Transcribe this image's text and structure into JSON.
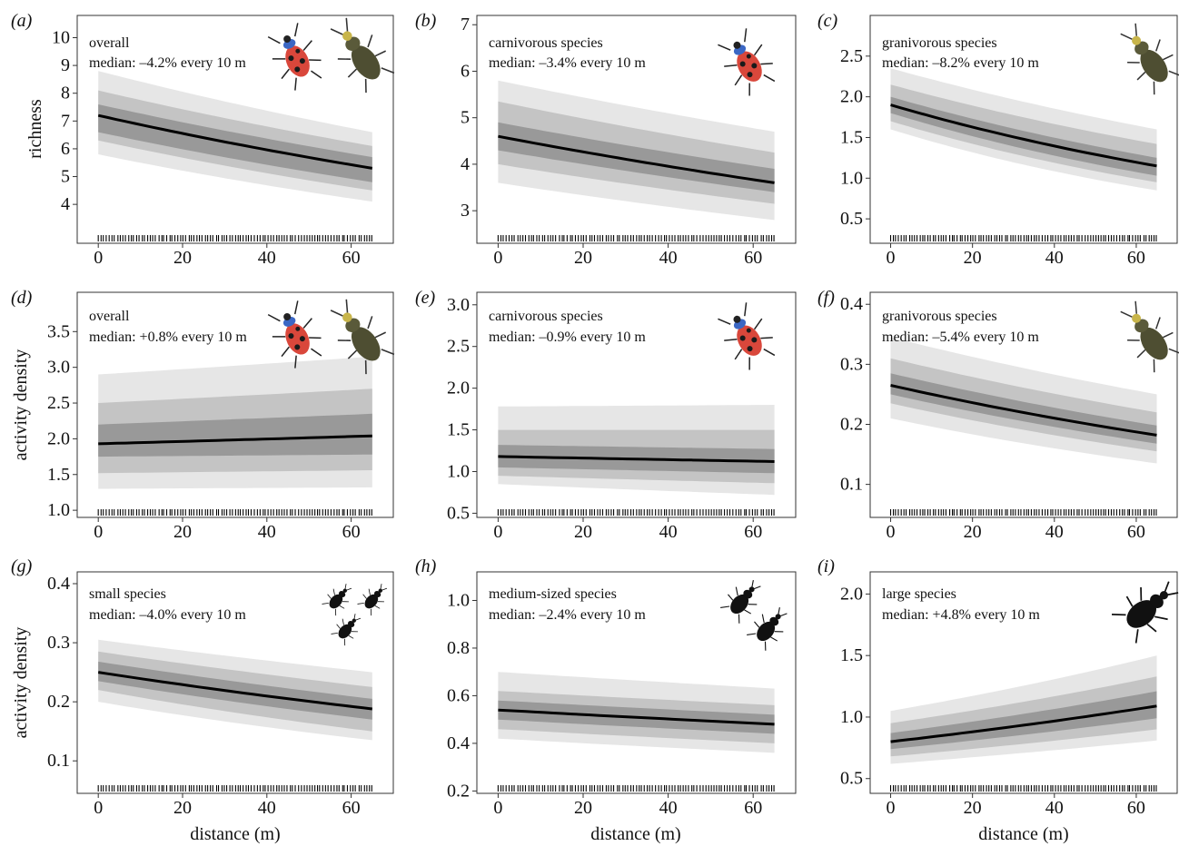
{
  "figure": {
    "ylabels": [
      "richness",
      "activity density",
      "activity density"
    ],
    "xlabel": "distance (m)"
  },
  "chart_data": [
    {
      "type": "line",
      "panel_label": "(a)",
      "annotation": [
        "overall",
        "median: –4.2% every 10 m"
      ],
      "icon": "ladybird-and-ground-beetle",
      "x": [
        0,
        65
      ],
      "series": [
        {
          "values": [
            7.2,
            5.3
          ]
        }
      ],
      "bands": [
        [
          6.6,
          4.8,
          7.6,
          5.7
        ],
        [
          6.3,
          4.5,
          8.1,
          6.1
        ],
        [
          5.8,
          4.1,
          8.8,
          6.6
        ]
      ],
      "xlim": [
        -5,
        70
      ],
      "ylim": [
        2.6,
        10.8
      ],
      "xticks": [
        "0",
        "20",
        "40",
        "60"
      ],
      "yticks": [
        "4",
        "5",
        "6",
        "7",
        "8",
        "9",
        "10"
      ]
    },
    {
      "type": "line",
      "panel_label": "(b)",
      "annotation": [
        "carnivorous species",
        "median: –3.4% every 10 m"
      ],
      "icon": "ladybird-beetle",
      "x": [
        0,
        65
      ],
      "series": [
        {
          "values": [
            4.6,
            3.6
          ]
        }
      ],
      "bands": [
        [
          4.3,
          3.4,
          4.9,
          3.9
        ],
        [
          4.0,
          3.15,
          5.35,
          4.25
        ],
        [
          3.6,
          2.8,
          5.8,
          4.7
        ]
      ],
      "xlim": [
        -5,
        70
      ],
      "ylim": [
        2.3,
        7.2
      ],
      "xticks": [
        "0",
        "20",
        "40",
        "60"
      ],
      "yticks": [
        "3",
        "4",
        "5",
        "6",
        "7"
      ]
    },
    {
      "type": "line",
      "panel_label": "(c)",
      "annotation": [
        "granivorous species",
        "median: –8.2% every 10 m"
      ],
      "icon": "ground-beetle",
      "x": [
        0,
        65
      ],
      "series": [
        {
          "values": [
            1.9,
            1.15
          ]
        }
      ],
      "bands": [
        [
          1.8,
          1.03,
          2.0,
          1.25
        ],
        [
          1.7,
          0.95,
          2.15,
          1.42
        ],
        [
          1.6,
          0.85,
          2.35,
          1.6
        ]
      ],
      "xlim": [
        -5,
        70
      ],
      "ylim": [
        0.2,
        3.0
      ],
      "xticks": [
        "0",
        "20",
        "40",
        "60"
      ],
      "yticks": [
        "0.5",
        "1.0",
        "1.5",
        "2.0",
        "2.5"
      ]
    },
    {
      "type": "line",
      "panel_label": "(d)",
      "annotation": [
        "overall",
        "median: +0.8% every 10 m"
      ],
      "icon": "ladybird-and-ground-beetle",
      "x": [
        0,
        65
      ],
      "series": [
        {
          "values": [
            1.93,
            2.04
          ]
        }
      ],
      "bands": [
        [
          1.75,
          1.78,
          2.2,
          2.35
        ],
        [
          1.52,
          1.56,
          2.5,
          2.7
        ],
        [
          1.3,
          1.32,
          2.9,
          3.15
        ]
      ],
      "xlim": [
        -5,
        70
      ],
      "ylim": [
        0.9,
        4.05
      ],
      "xticks": [
        "0",
        "20",
        "40",
        "60"
      ],
      "yticks": [
        "1.0",
        "1.5",
        "2.0",
        "2.5",
        "3.0",
        "3.5"
      ]
    },
    {
      "type": "line",
      "panel_label": "(e)",
      "annotation": [
        "carnivorous species",
        "median: –0.9% every 10 m"
      ],
      "icon": "ladybird-beetle",
      "x": [
        0,
        65
      ],
      "series": [
        {
          "values": [
            1.18,
            1.12
          ]
        }
      ],
      "bands": [
        [
          1.05,
          0.98,
          1.32,
          1.27
        ],
        [
          0.95,
          0.86,
          1.5,
          1.5
        ],
        [
          0.85,
          0.72,
          1.78,
          1.8
        ]
      ],
      "xlim": [
        -5,
        70
      ],
      "ylim": [
        0.45,
        3.15
      ],
      "xticks": [
        "0",
        "20",
        "40",
        "60"
      ],
      "yticks": [
        "0.5",
        "1.0",
        "1.5",
        "2.0",
        "2.5",
        "3.0"
      ]
    },
    {
      "type": "line",
      "panel_label": "(f)",
      "annotation": [
        "granivorous species",
        "median: –5.4% every 10 m"
      ],
      "icon": "ground-beetle",
      "x": [
        0,
        65
      ],
      "series": [
        {
          "values": [
            0.265,
            0.182
          ]
        }
      ],
      "bands": [
        [
          0.25,
          0.168,
          0.285,
          0.198
        ],
        [
          0.235,
          0.155,
          0.31,
          0.22
        ],
        [
          0.21,
          0.135,
          0.345,
          0.25
        ]
      ],
      "xlim": [
        -5,
        70
      ],
      "ylim": [
        0.045,
        0.42
      ],
      "xticks": [
        "0",
        "20",
        "40",
        "60"
      ],
      "yticks": [
        "0.1",
        "0.2",
        "0.3",
        "0.4"
      ]
    },
    {
      "type": "line",
      "panel_label": "(g)",
      "annotation": [
        "small species",
        "median: –4.0% every 10 m"
      ],
      "icon": "small-beetles",
      "x": [
        0,
        65
      ],
      "series": [
        {
          "values": [
            0.25,
            0.188
          ]
        }
      ],
      "bands": [
        [
          0.235,
          0.17,
          0.268,
          0.205
        ],
        [
          0.22,
          0.15,
          0.285,
          0.225
        ],
        [
          0.2,
          0.135,
          0.305,
          0.25
        ]
      ],
      "xlim": [
        -5,
        70
      ],
      "ylim": [
        0.045,
        0.42
      ],
      "xticks": [
        "0",
        "20",
        "40",
        "60"
      ],
      "yticks": [
        "0.1",
        "0.2",
        "0.3",
        "0.4"
      ]
    },
    {
      "type": "line",
      "panel_label": "(h)",
      "annotation": [
        "medium-sized species",
        "median: –2.4% every 10 m"
      ],
      "icon": "medium-beetles",
      "x": [
        0,
        65
      ],
      "series": [
        {
          "values": [
            0.54,
            0.48
          ]
        }
      ],
      "bands": [
        [
          0.5,
          0.44,
          0.58,
          0.52
        ],
        [
          0.46,
          0.4,
          0.62,
          0.56
        ],
        [
          0.42,
          0.36,
          0.7,
          0.63
        ]
      ],
      "xlim": [
        -5,
        70
      ],
      "ylim": [
        0.19,
        1.12
      ],
      "xticks": [
        "0",
        "20",
        "40",
        "60"
      ],
      "yticks": [
        "0.2",
        "0.4",
        "0.6",
        "0.8",
        "1.0"
      ]
    },
    {
      "type": "line",
      "panel_label": "(i)",
      "annotation": [
        "large species",
        "median: +4.8% every 10 m"
      ],
      "icon": "large-beetle",
      "x": [
        0,
        65
      ],
      "series": [
        {
          "values": [
            0.8,
            1.09
          ]
        }
      ],
      "bands": [
        [
          0.74,
          0.99,
          0.87,
          1.21
        ],
        [
          0.68,
          0.9,
          0.95,
          1.33
        ],
        [
          0.62,
          0.81,
          1.05,
          1.5
        ]
      ],
      "xlim": [
        -5,
        70
      ],
      "ylim": [
        0.38,
        2.18
      ],
      "xticks": [
        "0",
        "20",
        "40",
        "60"
      ],
      "yticks": [
        "0.5",
        "1.0",
        "1.5",
        "2.0"
      ]
    }
  ]
}
